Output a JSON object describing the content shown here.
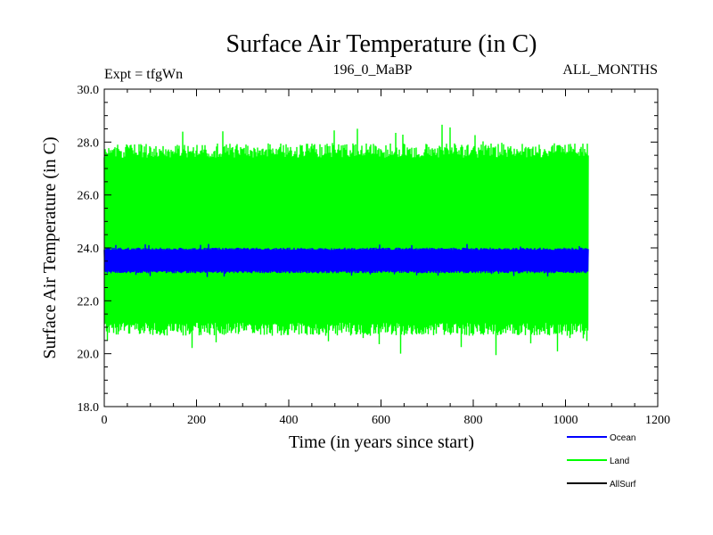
{
  "chart_data": {
    "type": "line",
    "title": "Surface Air Temperature (in C)",
    "left_label": "Expt = tfgWn",
    "center_label": "196_0_MaBP",
    "right_label": "ALL_MONTHS",
    "xlabel": "Time (in years since start)",
    "ylabel": "Surface Air Temperature (in C)",
    "xlim": [
      0,
      1200
    ],
    "ylim": [
      18.0,
      30.0
    ],
    "x_ticks": [
      "0",
      "200",
      "400",
      "600",
      "800",
      "1000",
      "1200"
    ],
    "y_ticks": [
      "18.0",
      "20.0",
      "22.0",
      "24.0",
      "26.0",
      "28.0",
      "30.0"
    ],
    "legend_position": "bottom-right",
    "series": [
      {
        "name": "Land",
        "color": "#00ff00",
        "x_range": [
          0,
          1050
        ],
        "mean": 24.3,
        "band": [
          21.0,
          27.6
        ],
        "extremes": [
          19.9,
          28.8
        ],
        "description": "monthly values oscillating strongly between about 20 and 28"
      },
      {
        "name": "Ocean",
        "color": "#0000ff",
        "x_range": [
          0,
          1050
        ],
        "mean": 23.5,
        "band": [
          23.1,
          23.95
        ],
        "extremes": [
          22.9,
          24.15
        ]
      },
      {
        "name": "AllSurf",
        "color": "#000000",
        "x_range": [
          0,
          1050
        ],
        "visible": false
      }
    ]
  }
}
